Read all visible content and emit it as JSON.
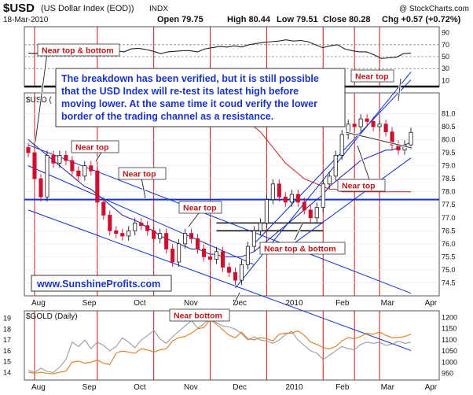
{
  "header": {
    "symbol": "$USD",
    "name": "(US Dollar Index (EOD))",
    "exchange": "INDX",
    "date": "18-Mar-2010",
    "copyright": "@ StockCharts.com",
    "open": "Open 79.75",
    "high": "High 80.44",
    "low": "Low 79.51",
    "close": "Close 80.28",
    "change": "Chg +0.57 (+0.72%)",
    "change_direction": "up"
  },
  "annotation_box": {
    "lines": [
      "The breakdown has been verified, but it is still possible",
      "that the USD Index will re-test its latest high before",
      "moving lower. At the same time it coud verify the lower",
      "border of the trading channel as a resistance."
    ]
  },
  "watermark": "www.SunshineProfits.com",
  "main_label": "$USD (",
  "chart_data": [
    {
      "panel": "rsi",
      "type": "line",
      "ylim": [
        0,
        100
      ],
      "y_ticks": [
        "90",
        "70",
        "50",
        "30",
        "10"
      ],
      "reference_levels": [
        70,
        50,
        30
      ],
      "values": [
        56,
        55,
        58,
        60,
        58,
        64,
        62,
        66,
        60,
        57,
        60,
        62,
        60,
        58,
        63,
        64,
        62,
        59,
        55,
        58,
        59,
        60,
        60,
        58,
        63,
        65,
        67,
        66,
        68,
        66,
        70,
        72,
        74,
        75,
        76,
        78,
        76,
        77,
        75,
        70,
        65,
        68,
        70,
        63,
        60,
        58,
        58,
        53,
        47,
        48,
        49,
        55,
        56
      ],
      "label_near_top_bottom": "Near top & bottom",
      "label_near_top": "Near top",
      "colors": {
        "line": "#222222",
        "reference": "#888888"
      }
    },
    {
      "panel": "price",
      "type": "candlestick",
      "title": "$USD (US Dollar Index (EOD)) INDX",
      "ylim": [
        74.0,
        81.8
      ],
      "y_ticks": [
        "81.0",
        "80.5",
        "80.0",
        "79.5",
        "79.0",
        "78.5",
        "78.0",
        "77.5",
        "77.0",
        "76.5",
        "76.0",
        "75.5",
        "75.0",
        "74.5"
      ],
      "x_labels": [
        "Aug",
        "Sep",
        "Oct",
        "Nov",
        "Dec",
        "2010",
        "Feb",
        "Mar",
        "Apr"
      ],
      "close": [
        79.5,
        78.5,
        77.8,
        79.4,
        79.1,
        79.4,
        79.2,
        78.8,
        78.6,
        79.0,
        78.8,
        77.6,
        77.1,
        76.5,
        76.4,
        76.3,
        76.5,
        76.8,
        76.7,
        76.5,
        76.2,
        76.4,
        75.8,
        75.3,
        76.0,
        76.4,
        76.2,
        75.8,
        75.5,
        75.4,
        75.7,
        75.1,
        74.9,
        74.6,
        75.2,
        75.9,
        76.5,
        76.8,
        77.7,
        78.3,
        77.8,
        77.6,
        77.9,
        77.6,
        77.3,
        77.0,
        77.4,
        78.3,
        78.6,
        79.4,
        80.2,
        80.6,
        80.5,
        80.8,
        80.7,
        80.5,
        80.6,
        80.3,
        79.8,
        79.6,
        79.8,
        80.28
      ],
      "horizontal_lines": [
        77.7,
        76.8,
        76.5
      ],
      "trend_channels": [
        {
          "name": "upper-down",
          "from": [
            0,
            79.8
          ],
          "to": [
            61,
            74.1
          ]
        },
        {
          "name": "lower-down",
          "from": [
            0,
            77.3
          ],
          "to": [
            61,
            71.9
          ]
        },
        {
          "name": "inner-down",
          "from": [
            0,
            79.0
          ],
          "to": [
            36,
            75.2
          ]
        },
        {
          "name": "up-channel-steep",
          "from": [
            33,
            74.3
          ],
          "to": [
            61,
            82.6
          ]
        },
        {
          "name": "up-channel-upper",
          "from": [
            36,
            76.0
          ],
          "to": [
            61,
            82.3
          ]
        },
        {
          "name": "up-channel-lower",
          "from": [
            40,
            75.6
          ],
          "to": [
            61,
            79.3
          ]
        }
      ],
      "moving_averages": [
        {
          "name": "ma50",
          "color": "#1a1aa8",
          "values": [
            80.0,
            79.8,
            79.6,
            79.4,
            79.2,
            79.0,
            78.8,
            78.6,
            78.4,
            78.2,
            78.1,
            77.9,
            77.7,
            77.5,
            77.3,
            77.1,
            77.0,
            76.9,
            76.8,
            76.6,
            76.5,
            76.3,
            76.2,
            76.1,
            76.0,
            75.9,
            75.8,
            75.8,
            75.7,
            75.6,
            75.6,
            75.5,
            75.5,
            75.5,
            75.5,
            75.6,
            75.7,
            75.9,
            76.1,
            76.3,
            76.5,
            76.7,
            76.9,
            77.1,
            77.3,
            77.5,
            77.7,
            77.9,
            78.2,
            78.4,
            78.6,
            78.8,
            79.0,
            79.2,
            79.3,
            79.4,
            79.5,
            79.6,
            79.6,
            79.7,
            79.8,
            79.9
          ]
        },
        {
          "name": "ma200",
          "color": "#cc2020",
          "values": [
            null,
            null,
            null,
            null,
            null,
            null,
            null,
            null,
            null,
            null,
            null,
            null,
            null,
            null,
            null,
            null,
            null,
            null,
            null,
            null,
            null,
            null,
            null,
            null,
            null,
            null,
            null,
            null,
            null,
            null,
            null,
            null,
            null,
            null,
            null,
            80.7,
            80.5,
            80.3,
            80.0,
            79.7,
            79.4,
            79.1,
            78.9,
            78.7,
            78.5,
            78.4,
            78.3,
            78.2,
            78.1,
            78.1,
            78.0,
            78.0,
            78.0,
            78.0,
            78.0,
            78.0,
            78.0,
            78.0,
            78.0,
            78.0,
            78.0,
            78.0
          ]
        }
      ],
      "event_markers": [
        1,
        11,
        20,
        29,
        38,
        47,
        52,
        56
      ],
      "labels": {
        "near_top_1": "Near top",
        "near_top_2": "Near top",
        "near_top_3": "Near top",
        "near_top_4": "Near top",
        "near_top_5": "Near top",
        "near_top_bottom": "Near top & bottom",
        "near_bottom": "Near bottom"
      },
      "colors": {
        "up": "#1a1a1a",
        "down": "#cc1030",
        "channel": "#1030d0"
      }
    },
    {
      "panel": "gold",
      "type": "line",
      "title": "$GOLD (Daily)",
      "y_left_ticks": [
        "19",
        "18",
        "17",
        "16",
        "15",
        "14"
      ],
      "y_right_ticks": [
        "1200",
        "1150",
        "1100",
        "1050",
        "1000",
        "950"
      ],
      "x_labels": [
        "Aug",
        "Sep",
        "Oct",
        "Nov",
        "Dec",
        "2010",
        "Feb",
        "Mar",
        "Apr"
      ],
      "series": [
        {
          "name": "gray",
          "color": "#9a9a9a",
          "values": [
            14.2,
            14.0,
            14.4,
            14.1,
            14.0,
            14.5,
            15.2,
            16.8,
            16.4,
            17.0,
            16.2,
            16.8,
            16.5,
            16.0,
            16.4,
            17.2,
            16.8,
            16.3,
            17.0,
            17.4,
            17.9,
            17.1,
            16.7,
            17.3,
            17.8,
            18.3,
            18.8,
            18.1,
            18.5,
            19.0,
            18.6,
            18.3,
            18.2,
            18.0,
            17.6,
            17.0,
            17.3,
            17.0,
            16.9,
            16.7,
            17.0,
            17.5,
            17.8,
            17.0,
            16.5,
            16.0,
            15.8,
            15.2,
            15.6,
            16.0,
            16.4,
            16.2,
            16.1,
            16.6,
            16.8,
            16.7,
            16.8,
            16.5,
            16.6,
            16.9,
            16.7,
            16.8
          ]
        },
        {
          "name": "orange",
          "color": "#e07a20",
          "values": [
            955,
            950,
            955,
            950,
            948,
            955,
            960,
            1000,
            1005,
            995,
            1000,
            1010,
            995,
            990,
            1040,
            1050,
            1045,
            1040,
            1060,
            1055,
            1045,
            1055,
            1060,
            1095,
            1110,
            1115,
            1130,
            1150,
            1155,
            1190,
            1170,
            1145,
            1120,
            1110,
            1135,
            1105,
            1100,
            1110,
            1105,
            1095,
            1125,
            1130,
            1130,
            1140,
            1120,
            1090,
            1080,
            1065,
            1060,
            1070,
            1095,
            1110,
            1105,
            1115,
            1130,
            1125,
            1135,
            1120,
            1110,
            1110,
            1115,
            1125
          ]
        }
      ],
      "colors": {
        "gray": "#9a9a9a",
        "orange": "#e07a20"
      }
    }
  ]
}
